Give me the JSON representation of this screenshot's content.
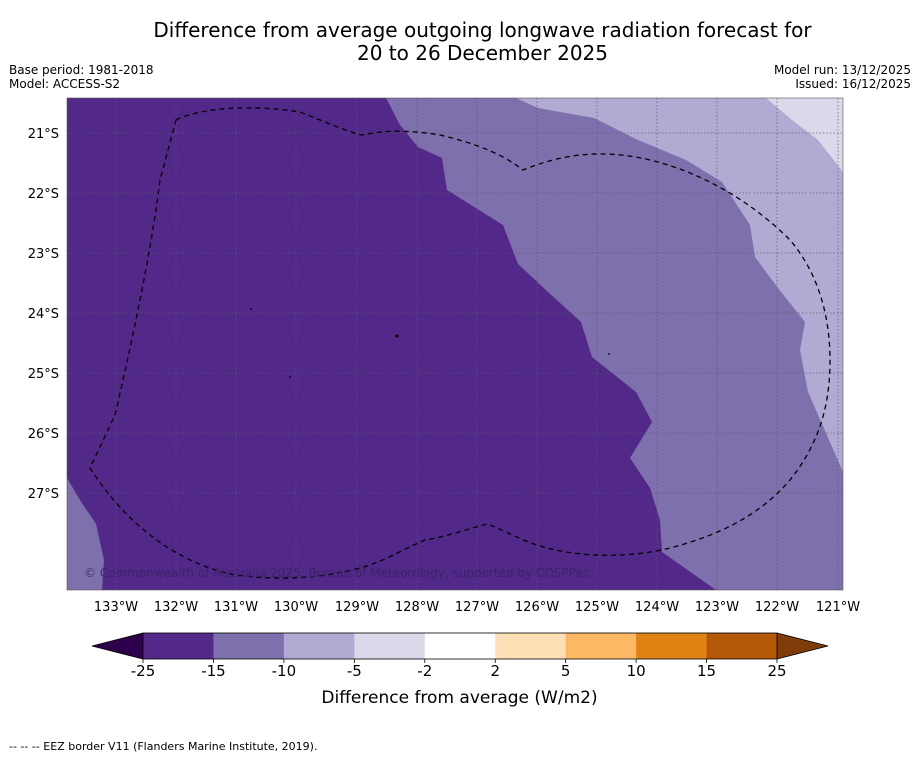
{
  "title": {
    "line1": "Difference from average outgoing longwave radiation forecast for",
    "line2": "20 to 26 December 2025"
  },
  "meta": {
    "base_period": "Base period: 1981-2018",
    "model": "Model: ACCESS-S2",
    "model_run": "Model run: 13/12/2025",
    "issued": "Issued: 16/12/2025"
  },
  "map": {
    "lat_labels": [
      "21°S",
      "22°S",
      "23°S",
      "24°S",
      "25°S",
      "26°S",
      "27°S"
    ],
    "lon_labels": [
      "133°W",
      "132°W",
      "131°W",
      "130°W",
      "129°W",
      "128°W",
      "127°W",
      "126°W",
      "125°W",
      "124°W",
      "123°W",
      "122°W",
      "121°W"
    ],
    "copyright": "© Commonwealth of Australia 2025, Bureau of Meteorology, supported by COSPPac",
    "legend_label": "Difference from average (W/m2)",
    "colors": {
      "class_neg15_to_neg25": "#522888",
      "class_neg10_to_neg15": "#7e70ad",
      "class_neg5_to_neg10": "#b1aad2",
      "class_neg2_to_neg5": "#d9d9ea"
    }
  },
  "colorbar": {
    "ticks": [
      "-25",
      "-15",
      "-10",
      "-5",
      "-2",
      "2",
      "5",
      "10",
      "15",
      "25"
    ],
    "colors": [
      "#522888",
      "#7e70ad",
      "#b1aad2",
      "#d9d9ea",
      "#ffffff",
      "#fde0b6",
      "#fdb863",
      "#e08214",
      "#b35806"
    ],
    "under_color": "#2d004b",
    "over_color": "#7f3b08"
  },
  "footnote": "--  --  -- EEZ border V11 (Flanders Marine Institute, 2019)."
}
